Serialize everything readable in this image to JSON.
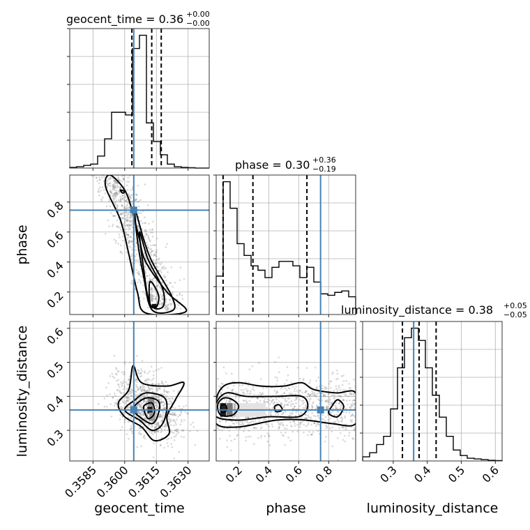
{
  "chart_data": {
    "type": "corner",
    "parameters": [
      "geocent_time",
      "phase",
      "luminosity_distance"
    ],
    "titles": [
      {
        "name": "geocent_time",
        "median": "0.36",
        "plus": "+0.00",
        "minus": "−0.00"
      },
      {
        "name": "phase",
        "median": "0.30",
        "plus": "+0.36",
        "minus": "−0.19"
      },
      {
        "name": "luminosity_distance",
        "median": "0.38",
        "plus": "+0.05",
        "minus": "−0.05"
      }
    ],
    "axes": {
      "geocent_time": {
        "range": [
          0.3574,
          0.364
        ],
        "ticks": [
          0.3585,
          0.36,
          0.3615,
          0.363
        ],
        "tick_labels": [
          "0.3585",
          "0.3600",
          "0.3615",
          "0.3630"
        ]
      },
      "phase": {
        "range": [
          0.05,
          0.98
        ],
        "ticks": [
          0.2,
          0.4,
          0.6,
          0.8
        ],
        "tick_labels": [
          "0.2",
          "0.4",
          "0.6",
          "0.8"
        ]
      },
      "luminosity_distance": {
        "range": [
          0.21,
          0.62
        ],
        "ticks": [
          0.3,
          0.4,
          0.5,
          0.6
        ],
        "tick_labels": [
          "0.3",
          "0.4",
          "0.5",
          "0.6"
        ]
      }
    },
    "truths": {
      "geocent_time": 0.36043,
      "phase": 0.746,
      "luminosity_distance": 0.36
    },
    "quantiles": {
      "geocent_time": [
        0.36034,
        0.36128,
        0.36173
      ],
      "phase": [
        0.096,
        0.295,
        0.655
      ],
      "luminosity_distance": [
        0.327,
        0.376,
        0.426
      ]
    },
    "histograms": {
      "geocent_time": {
        "edges_range": [
          0.3574,
          0.364
        ],
        "bins": 20,
        "counts": [
          0.5,
          1,
          2,
          3,
          9,
          22,
          42,
          42,
          40,
          90,
          100,
          34,
          20,
          10,
          3,
          1,
          0.5,
          0.3,
          0,
          0
        ]
      },
      "phase": {
        "edges_range": [
          0.05,
          0.98
        ],
        "bins": 20,
        "counts": [
          26,
          90,
          72,
          48,
          40,
          33,
          30,
          25,
          32,
          36,
          36,
          33,
          25,
          32,
          22,
          14,
          13,
          15,
          16,
          12
        ]
      },
      "luminosity_distance": {
        "edges_range": [
          0.21,
          0.62
        ],
        "bins": 20,
        "counts": [
          3,
          6,
          12,
          18,
          38,
          68,
          90,
          97,
          88,
          68,
          48,
          32,
          18,
          8,
          4,
          2,
          1.5,
          1,
          0.5,
          0.3
        ]
      }
    },
    "grid": true
  }
}
